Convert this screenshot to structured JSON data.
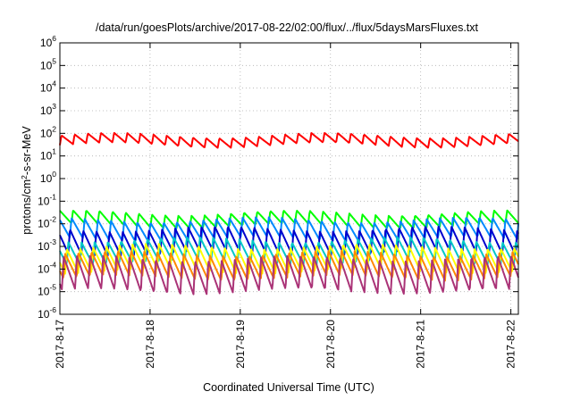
{
  "chart_data": {
    "type": "line",
    "title": "/data/run/goesPlots/archive/2017-08-22/02:00/flux/../flux/5daysMarsFluxes.txt",
    "xlabel": "Coordinated Universal Time (UTC)",
    "ylabel": "protons/cm²-s-sr-MeV",
    "yscale": "log",
    "grid": true,
    "legend": "none",
    "x_ticks": [
      "2017-8-17",
      "2017-8-18",
      "2017-8-19",
      "2017-8-20",
      "2017-8-21",
      "2017-8-22"
    ],
    "xlim": [
      "2017-08-17T00:00",
      "2017-08-22T02:00"
    ],
    "y_tick_exponents": [
      -6,
      -5,
      -4,
      -3,
      -2,
      -1,
      0,
      1,
      2,
      3,
      4,
      5,
      6
    ],
    "ylim": [
      1e-06,
      1000000.0
    ],
    "series": [
      {
        "color": "#ff0000",
        "approx_peak": 80,
        "approx_trough": 30
      },
      {
        "color": "#00ff00",
        "approx_peak": 0.03,
        "approx_trough": 0.008
      },
      {
        "color": "#0088ff",
        "approx_peak": 0.015,
        "approx_trough": 0.002
      },
      {
        "color": "#0000cc",
        "approx_peak": 0.006,
        "approx_trough": 0.0005
      },
      {
        "color": "#00c8c8",
        "approx_peak": 0.002,
        "approx_trough": 0.0002
      },
      {
        "color": "#ffff00",
        "approx_peak": 0.001,
        "approx_trough": 8e-05
      },
      {
        "color": "#ff8800",
        "approx_peak": 0.0005,
        "approx_trough": 4e-05
      },
      {
        "color": "#aa3377",
        "approx_peak": 0.0003,
        "approx_trough": 1e-05
      }
    ]
  }
}
